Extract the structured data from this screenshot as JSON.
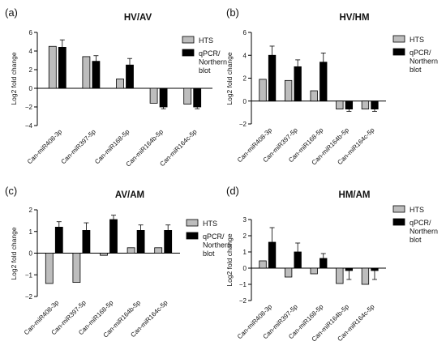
{
  "chart_data": [
    {
      "panel": "(a)",
      "type": "bar",
      "title": "HV/AV",
      "ylabel": "Log2 fold change",
      "xlabel": "",
      "ylim": [
        -4,
        6
      ],
      "yticks": [
        -4,
        -2,
        0,
        2,
        4,
        6
      ],
      "categories": [
        "Can-miR408-3p",
        "Can-miR397-5p",
        "Can-miR168-5p",
        "Can-miR164b-5p",
        "Can-miR164c-5p"
      ],
      "legend_position": "right",
      "series": [
        {
          "name": "HTS",
          "color": "#bdbdbd",
          "values": [
            4.5,
            3.4,
            1.0,
            -1.6,
            -1.7
          ],
          "errors": [
            0,
            0,
            0,
            0,
            0
          ]
        },
        {
          "name": "qPCR/Northern blot",
          "color": "#000000",
          "values": [
            4.4,
            2.9,
            2.5,
            -2.0,
            -2.0
          ],
          "errors": [
            0.8,
            0.6,
            0.7,
            0.2,
            0.2
          ]
        }
      ]
    },
    {
      "panel": "(b)",
      "type": "bar",
      "title": "HV/HM",
      "ylabel": "Log2 fold change",
      "xlabel": "",
      "ylim": [
        -2,
        6
      ],
      "yticks": [
        -2,
        0,
        2,
        4,
        6
      ],
      "categories": [
        "Can-miR408-3p",
        "Can-miR397-5p",
        "Can-miR168-5p",
        "Can-miR164b-5p",
        "Can-miR164c-5p"
      ],
      "legend_position": "right",
      "series": [
        {
          "name": "HTS",
          "color": "#bdbdbd",
          "values": [
            1.9,
            1.8,
            0.9,
            -0.7,
            -0.7
          ],
          "errors": [
            0,
            0,
            0,
            0,
            0
          ]
        },
        {
          "name": "qPCR/Northern blot",
          "color": "#000000",
          "values": [
            4.0,
            3.0,
            3.4,
            -0.7,
            -0.7
          ],
          "errors": [
            0.8,
            0.6,
            0.8,
            0.2,
            0.2
          ]
        }
      ]
    },
    {
      "panel": "(c)",
      "type": "bar",
      "title": "AV/AM",
      "ylabel": "Log2 fold change",
      "xlabel": "",
      "ylim": [
        -2,
        2
      ],
      "yticks": [
        -2,
        -1,
        0,
        1,
        2
      ],
      "categories": [
        "Can-miR408-3p",
        "Can-miR397-5p",
        "Can-miR168-5p",
        "Can-miR164b-5p",
        "Can-miR164c-5p"
      ],
      "legend_position": "right",
      "series": [
        {
          "name": "HTS",
          "color": "#bdbdbd",
          "values": [
            -1.4,
            -1.35,
            -0.1,
            0.25,
            0.25
          ],
          "errors": [
            0,
            0,
            0,
            0,
            0
          ]
        },
        {
          "name": "qPCR/Northern blot",
          "color": "#000000",
          "values": [
            1.2,
            1.05,
            1.55,
            1.05,
            1.05
          ],
          "errors": [
            0.25,
            0.35,
            0.2,
            0.25,
            0.25
          ]
        }
      ]
    },
    {
      "panel": "(d)",
      "type": "bar",
      "title": "HM/AM",
      "ylabel": "Log2 fold change",
      "xlabel": "",
      "ylim": [
        -2,
        3
      ],
      "yticks": [
        -2,
        -1,
        0,
        1,
        2,
        3
      ],
      "categories": [
        "Can-miR408-3p",
        "Can-miR397-5p",
        "Can-miR168-5p",
        "Can-miR164b-5p",
        "Can-miR164c-5p"
      ],
      "legend_position": "right",
      "series": [
        {
          "name": "HTS",
          "color": "#bdbdbd",
          "values": [
            0.45,
            -0.55,
            -0.35,
            -0.95,
            -1.0
          ],
          "errors": [
            0,
            0,
            0,
            0,
            0
          ]
        },
        {
          "name": "qPCR/Northern blot",
          "color": "#000000",
          "values": [
            1.6,
            1.0,
            0.6,
            -0.15,
            -0.15
          ],
          "errors": [
            0.9,
            0.55,
            0.3,
            0.55,
            0.55
          ]
        }
      ]
    }
  ]
}
